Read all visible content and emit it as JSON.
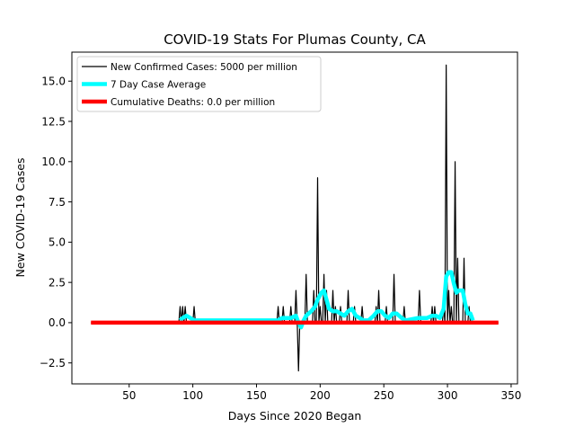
{
  "chart_data": {
    "type": "line",
    "title": "COVID-19 Stats For Plumas County, CA",
    "xlabel": "Days Since 2020 Began",
    "ylabel": "New COVID-19 Cases",
    "xlim": [
      5,
      355
    ],
    "ylim": [
      -3.8,
      16.8
    ],
    "xticks": [
      50,
      100,
      150,
      200,
      250,
      300,
      350
    ],
    "xtick_labels": [
      "50",
      "100",
      "150",
      "200",
      "250",
      "300",
      "350"
    ],
    "yticks": [
      -2.5,
      0.0,
      2.5,
      5.0,
      7.5,
      10.0,
      12.5,
      15.0
    ],
    "ytick_labels": [
      "−2.5",
      "0.0",
      "2.5",
      "5.0",
      "7.5",
      "10.0",
      "12.5",
      "15.0"
    ],
    "grid": false,
    "legend_position": "top-left",
    "series": [
      {
        "name": "New Confirmed Cases: 5000 per million",
        "color": "#000000",
        "points": [
          [
            20,
            0
          ],
          [
            89,
            0
          ],
          [
            90,
            1
          ],
          [
            91,
            0
          ],
          [
            92,
            1
          ],
          [
            93,
            0
          ],
          [
            94,
            1
          ],
          [
            95,
            0
          ],
          [
            100,
            0
          ],
          [
            101,
            1
          ],
          [
            102,
            0
          ],
          [
            166,
            0
          ],
          [
            167,
            1
          ],
          [
            168,
            0
          ],
          [
            170,
            0
          ],
          [
            171,
            1
          ],
          [
            172,
            0
          ],
          [
            176,
            0
          ],
          [
            177,
            1
          ],
          [
            178,
            0
          ],
          [
            180,
            0
          ],
          [
            181,
            2
          ],
          [
            182,
            0
          ],
          [
            183,
            -3
          ],
          [
            184,
            0
          ],
          [
            188,
            0
          ],
          [
            189,
            3
          ],
          [
            190,
            0
          ],
          [
            194,
            0
          ],
          [
            195,
            2
          ],
          [
            196,
            0
          ],
          [
            197,
            0
          ],
          [
            198,
            9
          ],
          [
            199,
            0
          ],
          [
            200,
            1
          ],
          [
            201,
            0
          ],
          [
            202,
            0
          ],
          [
            203,
            3
          ],
          [
            204,
            0
          ],
          [
            205,
            2
          ],
          [
            206,
            0
          ],
          [
            209,
            0
          ],
          [
            210,
            2
          ],
          [
            211,
            0
          ],
          [
            212,
            1
          ],
          [
            213,
            0
          ],
          [
            215,
            0
          ],
          [
            216,
            1
          ],
          [
            217,
            0
          ],
          [
            221,
            0
          ],
          [
            222,
            2
          ],
          [
            223,
            0
          ],
          [
            226,
            0
          ],
          [
            227,
            1
          ],
          [
            228,
            0
          ],
          [
            232,
            0
          ],
          [
            233,
            1
          ],
          [
            234,
            0
          ],
          [
            243,
            0
          ],
          [
            244,
            1
          ],
          [
            245,
            0
          ],
          [
            246,
            2
          ],
          [
            247,
            0
          ],
          [
            251,
            0
          ],
          [
            252,
            1
          ],
          [
            253,
            0
          ],
          [
            257,
            0
          ],
          [
            258,
            3
          ],
          [
            259,
            0
          ],
          [
            265,
            0
          ],
          [
            266,
            1
          ],
          [
            267,
            0
          ],
          [
            277,
            0
          ],
          [
            278,
            2
          ],
          [
            279,
            0
          ],
          [
            287,
            0
          ],
          [
            288,
            1
          ],
          [
            289,
            0
          ],
          [
            290,
            1
          ],
          [
            291,
            0
          ],
          [
            296,
            0
          ],
          [
            297,
            1
          ],
          [
            298,
            0
          ],
          [
            299,
            16
          ],
          [
            300,
            0
          ],
          [
            301,
            2
          ],
          [
            302,
            0
          ],
          [
            303,
            1
          ],
          [
            304,
            0
          ],
          [
            305,
            0
          ],
          [
            306,
            10
          ],
          [
            307,
            0
          ],
          [
            308,
            4
          ],
          [
            309,
            0
          ],
          [
            312,
            0
          ],
          [
            313,
            4
          ],
          [
            314,
            0
          ],
          [
            316,
            0
          ],
          [
            317,
            1
          ],
          [
            318,
            0
          ],
          [
            340,
            0
          ]
        ]
      },
      {
        "name": "7 Day Case Average",
        "color": "#00ffff",
        "points": [
          [
            90,
            0.14
          ],
          [
            92,
            0.29
          ],
          [
            95,
            0.43
          ],
          [
            98,
            0.29
          ],
          [
            101,
            0.14
          ],
          [
            104,
            0.14
          ],
          [
            106,
            0.14
          ],
          [
            167,
            0.14
          ],
          [
            170,
            0.29
          ],
          [
            174,
            0.29
          ],
          [
            177,
            0.29
          ],
          [
            181,
            0.43
          ],
          [
            183,
            0
          ],
          [
            185,
            -0.29
          ],
          [
            187,
            0.14
          ],
          [
            189,
            0.43
          ],
          [
            193,
            0.71
          ],
          [
            196,
            1.0
          ],
          [
            198,
            1.43
          ],
          [
            201,
            1.86
          ],
          [
            203,
            2.0
          ],
          [
            205,
            1.43
          ],
          [
            207,
            0.86
          ],
          [
            210,
            0.71
          ],
          [
            213,
            0.71
          ],
          [
            216,
            0.57
          ],
          [
            219,
            0.43
          ],
          [
            222,
            0.71
          ],
          [
            225,
            0.86
          ],
          [
            228,
            0.43
          ],
          [
            231,
            0.29
          ],
          [
            234,
            0.14
          ],
          [
            238,
            0.14
          ],
          [
            242,
            0.43
          ],
          [
            245,
            0.71
          ],
          [
            248,
            0.71
          ],
          [
            251,
            0.43
          ],
          [
            254,
            0.29
          ],
          [
            257,
            0.57
          ],
          [
            260,
            0.57
          ],
          [
            264,
            0.29
          ],
          [
            267,
            0.14
          ],
          [
            277,
            0.29
          ],
          [
            280,
            0.29
          ],
          [
            284,
            0.29
          ],
          [
            288,
            0.43
          ],
          [
            291,
            0.43
          ],
          [
            294,
            0.29
          ],
          [
            297,
            0.86
          ],
          [
            299,
            2.86
          ],
          [
            301,
            3.14
          ],
          [
            303,
            3.14
          ],
          [
            305,
            2.43
          ],
          [
            307,
            1.86
          ],
          [
            309,
            2.0
          ],
          [
            312,
            2.0
          ],
          [
            314,
            1.14
          ],
          [
            316,
            0.57
          ],
          [
            318,
            0.57
          ],
          [
            320,
            0.14
          ]
        ]
      },
      {
        "name": "Cumulative Deaths: 0.0 per million",
        "color": "#ff0000",
        "points": [
          [
            20,
            0
          ],
          [
            340,
            0
          ]
        ]
      }
    ]
  }
}
